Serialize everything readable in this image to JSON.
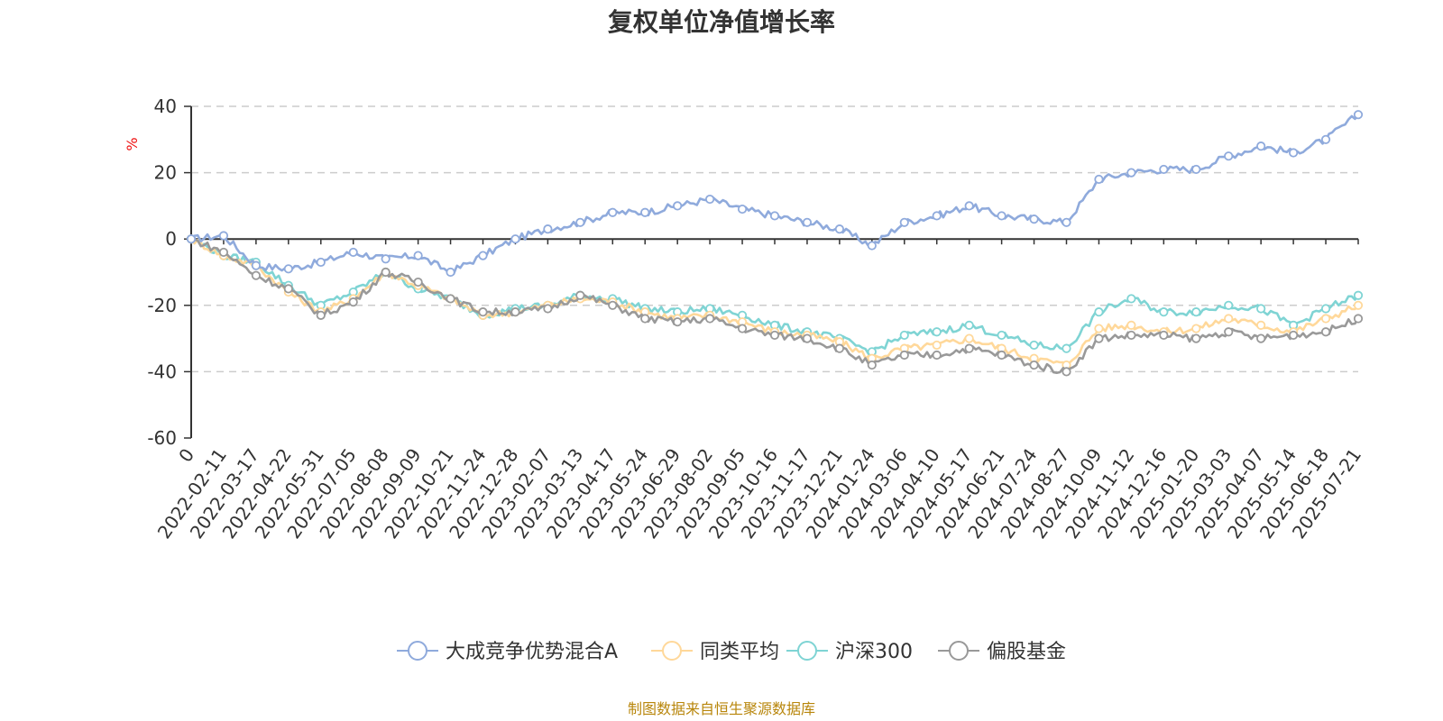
{
  "chart_data": {
    "type": "line",
    "title": "复权单位净值增长率",
    "ylabel": "%",
    "ylim": [
      -60,
      40
    ],
    "yticks": [
      40,
      20,
      0,
      -20,
      -40,
      -60
    ],
    "grid": true,
    "legend_position": "bottom",
    "x_tick_labels": [
      "0",
      "2022-02-11",
      "2022-03-17",
      "2022-04-22",
      "2022-05-31",
      "2022-07-05",
      "2022-08-08",
      "2022-09-09",
      "2022-10-21",
      "2022-11-24",
      "2022-12-28",
      "2023-02-07",
      "2023-03-13",
      "2023-04-17",
      "2023-05-24",
      "2023-06-29",
      "2023-08-02",
      "2023-09-05",
      "2023-10-16",
      "2023-11-17",
      "2023-12-21",
      "2024-01-24",
      "2024-03-06",
      "2024-04-10",
      "2024-05-17",
      "2024-06-21",
      "2024-07-24",
      "2024-08-27",
      "2024-10-09",
      "2024-11-12",
      "2024-12-16",
      "2025-01-20",
      "2025-03-03",
      "2025-04-07",
      "2025-05-14",
      "2025-06-18",
      "2025-07-21"
    ],
    "series": [
      {
        "name": "大成竞争优势混合A",
        "color": "#8faadc",
        "values": [
          0,
          1,
          -8,
          -9,
          -7,
          -4,
          -6,
          -5,
          -10,
          -5,
          0,
          3,
          5,
          8,
          8,
          10,
          12,
          9,
          7,
          5,
          3,
          -2,
          5,
          7,
          10,
          7,
          6,
          5,
          18,
          20,
          21,
          21,
          25,
          28,
          26,
          30,
          37.5
        ]
      },
      {
        "name": "同类平均",
        "color": "#ffd89a",
        "values": [
          0,
          -5,
          -8,
          -16,
          -22,
          -18,
          -10,
          -14,
          -18,
          -23,
          -22,
          -20,
          -18,
          -19,
          -22,
          -24,
          -23,
          -25,
          -28,
          -29,
          -31,
          -36,
          -33,
          -32,
          -30,
          -33,
          -36,
          -38,
          -27,
          -26,
          -28,
          -27,
          -24,
          -26,
          -28,
          -24,
          -20
        ]
      },
      {
        "name": "沪深300",
        "color": "#7fd4d4",
        "values": [
          0,
          -5,
          -7,
          -14,
          -20,
          -16,
          -10,
          -15,
          -18,
          -23,
          -21,
          -20,
          -17,
          -18,
          -21,
          -22,
          -21,
          -23,
          -26,
          -28,
          -30,
          -34,
          -29,
          -28,
          -26,
          -29,
          -32,
          -33,
          -22,
          -18,
          -22,
          -22,
          -20,
          -21,
          -26,
          -21,
          -17
        ]
      },
      {
        "name": "偏股基金",
        "color": "#999999",
        "values": [
          0,
          -4,
          -11,
          -15,
          -23,
          -19,
          -10,
          -13,
          -18,
          -22,
          -22,
          -21,
          -17,
          -20,
          -24,
          -25,
          -24,
          -27,
          -29,
          -30,
          -33,
          -38,
          -35,
          -35,
          -33,
          -35,
          -38,
          -40,
          -30,
          -29,
          -29,
          -30,
          -28,
          -30,
          -29,
          -28,
          -24
        ]
      }
    ]
  },
  "source_note": "制图数据来自恒生聚源数据库",
  "source_color": "#b8860b"
}
